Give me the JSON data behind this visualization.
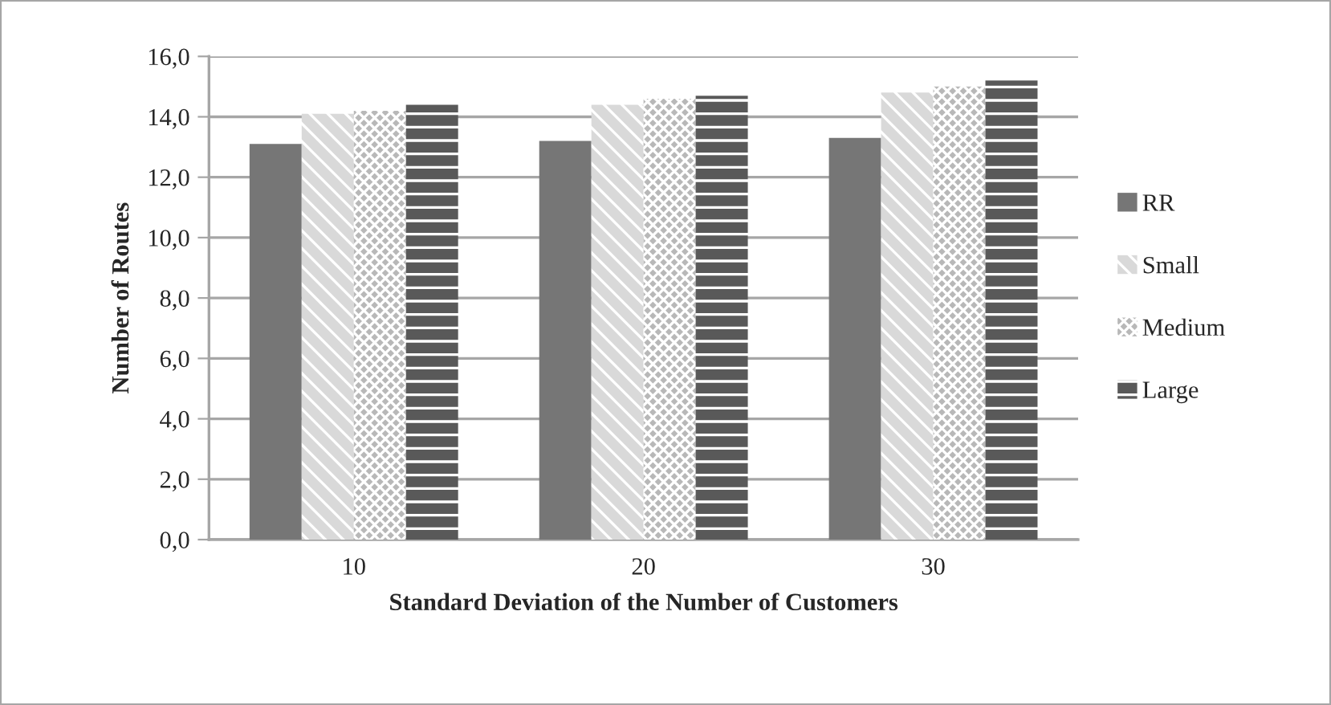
{
  "chart_data": {
    "type": "bar",
    "xlabel": "Standard Deviation of the Number of Customers",
    "ylabel": "Number of Routes",
    "categories": [
      "10",
      "20",
      "30"
    ],
    "series": [
      {
        "name": "RR",
        "color": "#767676",
        "values": [
          13.1,
          13.2,
          13.3
        ]
      },
      {
        "name": "Small",
        "color": "#d9d9d9",
        "values": [
          14.1,
          14.4,
          14.8
        ]
      },
      {
        "name": "Medium",
        "color": "#b8b8b8",
        "values": [
          14.2,
          14.6,
          15.0
        ]
      },
      {
        "name": "Large",
        "color": "#595959",
        "values": [
          14.4,
          14.7,
          15.2
        ]
      }
    ],
    "ylim": [
      0,
      16
    ],
    "yticks": [
      {
        "value": 0,
        "label": "0,0"
      },
      {
        "value": 2,
        "label": "2,0"
      },
      {
        "value": 4,
        "label": "4,0"
      },
      {
        "value": 6,
        "label": "6,0"
      },
      {
        "value": 8,
        "label": "8,0"
      },
      {
        "value": 10,
        "label": "10,0"
      },
      {
        "value": 12,
        "label": "12,0"
      },
      {
        "value": 14,
        "label": "14,0"
      },
      {
        "value": 16,
        "label": "16,0"
      }
    ],
    "grid": "y",
    "legend": "right"
  }
}
